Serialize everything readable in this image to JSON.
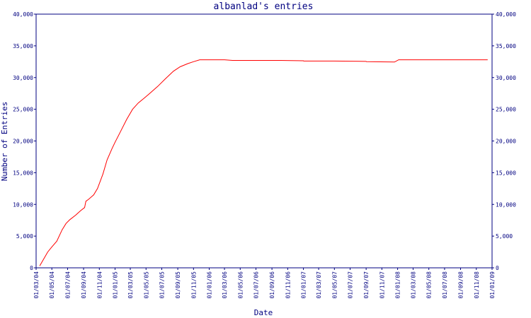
{
  "chart_data": {
    "type": "line",
    "title": "albanlad's entries",
    "xlabel": "Date",
    "ylabel": "Number of Entries",
    "ylim": [
      0,
      40000
    ],
    "y_ticks": [
      0,
      5000,
      10000,
      15000,
      20000,
      25000,
      30000,
      35000,
      40000
    ],
    "y_tick_labels": [
      "0",
      "5,000",
      "10,000",
      "15,000",
      "20,000",
      "25,000",
      "30,000",
      "35,000",
      "40,000"
    ],
    "x_tick_labels": [
      "01/03/04",
      "01/05/04",
      "01/07/04",
      "01/09/04",
      "01/11/04",
      "01/01/05",
      "01/03/05",
      "01/05/05",
      "01/07/05",
      "01/09/05",
      "01/11/05",
      "01/01/06",
      "01/03/06",
      "01/05/06",
      "01/07/06",
      "01/09/06",
      "01/11/06",
      "01/01/07",
      "01/03/07",
      "01/05/07",
      "01/07/07",
      "01/09/07",
      "01/11/07",
      "01/01/08",
      "01/03/08",
      "01/05/08",
      "01/07/08",
      "01/09/08",
      "01/11/08",
      "01/01/09"
    ],
    "grid": false,
    "line_color": "#ff0000",
    "axis_color": "#000080",
    "series": [
      {
        "x": [
          "2004-03-15",
          "2004-04-01",
          "2004-04-15",
          "2004-05-01",
          "2004-05-20",
          "2004-06-10",
          "2004-06-25",
          "2004-07-10",
          "2004-08-01",
          "2004-08-20",
          "2004-09-05",
          "2004-09-10",
          "2004-09-20",
          "2004-10-10",
          "2004-10-25",
          "2004-11-15",
          "2004-12-01",
          "2004-12-20",
          "2005-01-01",
          "2005-01-20",
          "2005-02-15",
          "2005-03-10",
          "2005-04-01",
          "2005-04-25",
          "2005-05-15",
          "2005-06-15",
          "2005-07-15",
          "2005-08-15",
          "2005-09-10",
          "2005-10-10",
          "2005-11-01",
          "2005-11-25",
          "2005-12-15",
          "2006-01-10",
          "2006-02-01",
          "2006-03-01",
          "2006-04-01",
          "2006-05-01",
          "2006-05-02",
          "2006-07-01",
          "2006-10-01",
          "2007-01-01",
          "2007-01-02",
          "2007-05-01",
          "2007-09-01",
          "2007-09-02",
          "2007-12-20",
          "2008-01-05",
          "2008-01-20",
          "2008-06-01",
          "2008-12-15"
        ],
        "y": [
          300,
          1500,
          2500,
          3300,
          4200,
          6000,
          7000,
          7600,
          8300,
          9000,
          9500,
          10500,
          10800,
          11500,
          12500,
          14800,
          17000,
          18800,
          19800,
          21300,
          23400,
          25000,
          26000,
          26800,
          27500,
          28600,
          29800,
          31000,
          31700,
          32200,
          32500,
          32800,
          32800,
          32800,
          32800,
          32800,
          32700,
          32700,
          32700,
          32700,
          32700,
          32650,
          32600,
          32600,
          32550,
          32500,
          32450,
          32800,
          32800,
          32800,
          32800
        ]
      }
    ]
  }
}
